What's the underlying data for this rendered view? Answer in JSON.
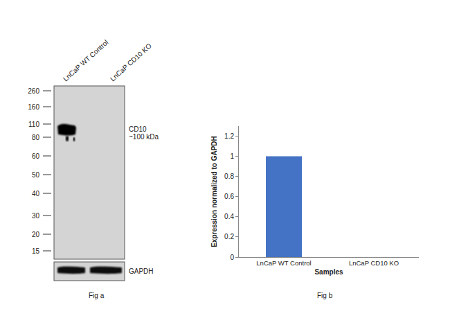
{
  "figure_a": {
    "caption": "Fig a",
    "lanes": [
      "LnCaP WT Control",
      "LnCaP CD10 KO"
    ],
    "markers_kda": [
      260,
      160,
      110,
      80,
      60,
      50,
      40,
      30,
      20,
      15
    ],
    "band": {
      "label": "CD10",
      "size": "~100 kDa"
    },
    "loading_control": "GAPDH"
  },
  "chart_data": {
    "type": "bar",
    "caption": "Fig b",
    "categories": [
      "LnCaP WT Control",
      "LnCaP CD10 KO"
    ],
    "values": [
      1,
      0
    ],
    "color": "#4472c4",
    "x_label": "Samples",
    "y_label": "Expression normalized to GAPDH",
    "ylim": [
      0,
      1.3
    ],
    "yticks": [
      0,
      0.2,
      0.4,
      0.6,
      0.8,
      1,
      1.2
    ],
    "grid": false
  }
}
